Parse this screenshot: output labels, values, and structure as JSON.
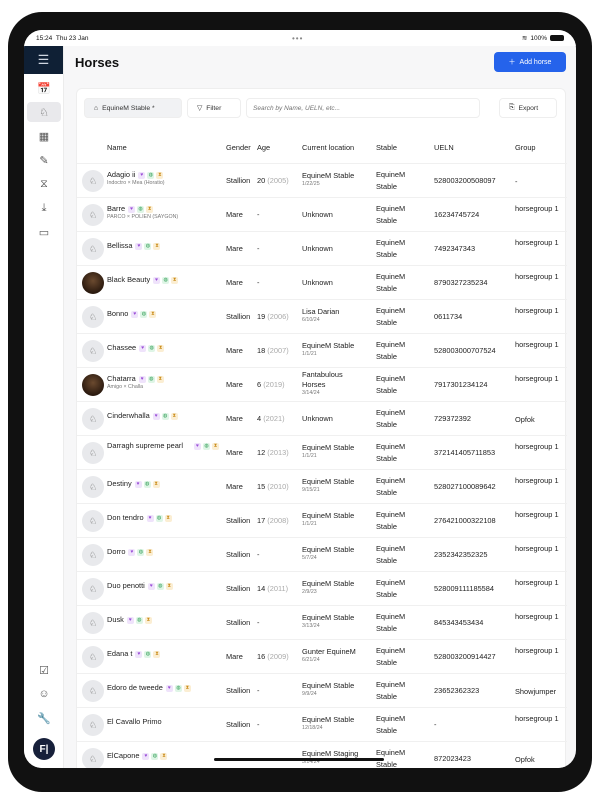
{
  "status": {
    "time": "15:24",
    "date": "Thu 23 Jan",
    "battery": "100%"
  },
  "sidebar": {
    "items": [
      {
        "icon": "calendar-icon",
        "glyph": "📅"
      },
      {
        "icon": "horse-icon",
        "glyph": "♘",
        "active": true
      },
      {
        "icon": "grid-icon",
        "glyph": "▦"
      },
      {
        "icon": "syringe-icon",
        "glyph": "✎"
      },
      {
        "icon": "dna-icon",
        "glyph": "⧖"
      },
      {
        "icon": "download-tray-icon",
        "glyph": "⤓"
      },
      {
        "icon": "wallet-icon",
        "glyph": "▭"
      }
    ],
    "bottom": [
      {
        "icon": "calendar-check-icon",
        "glyph": "☑"
      },
      {
        "icon": "contacts-icon",
        "glyph": "☺"
      },
      {
        "icon": "wrench-icon",
        "glyph": "🔧"
      }
    ],
    "user_initials": "F|"
  },
  "header": {
    "title": "Horses",
    "add_label": "Add horse"
  },
  "toolbar": {
    "stable_label": "EquineM Stable *",
    "filter_label": "Filter",
    "search_placeholder": "Search by Name, UELN, etc...",
    "export_label": "Export"
  },
  "columns": [
    "Name",
    "Gender",
    "Age",
    "Current location",
    "Stable",
    "UELN",
    "Group"
  ],
  "colors": {
    "accent": "#2563eb",
    "sidebar_header": "#0f2035"
  },
  "rows": [
    {
      "name": "Adagio ii",
      "pedigree": "Indoctro × Mea (Horatio)",
      "gender": "Stallion",
      "age": "20",
      "year": "(2005)",
      "location": "EquineM Stable",
      "date": "1/22/25",
      "stable": "EquineM Stable",
      "ueln": "528003200508097",
      "group": "-"
    },
    {
      "name": "Barre",
      "pedigree": "PARCO × POLIEN (SAYGON)",
      "gender": "Mare",
      "age": "-",
      "location": "Unknown",
      "stable": "EquineM Stable",
      "ueln": "16234745724",
      "group": "horsegroup 1"
    },
    {
      "name": "Bellissa",
      "gender": "Mare",
      "age": "-",
      "location": "Unknown",
      "stable": "EquineM Stable",
      "ueln": "7492347343",
      "group": "horsegroup 1"
    },
    {
      "name": "Black Beauty",
      "photo": true,
      "gender": "Mare",
      "age": "-",
      "location": "Unknown",
      "stable": "EquineM Stable",
      "ueln": "8790327235234",
      "group": "horsegroup 1"
    },
    {
      "name": "Bonno",
      "gender": "Stallion",
      "age": "19",
      "year": "(2006)",
      "location": "Lisa Darian",
      "date": "6/10/24",
      "stable": "EquineM Stable",
      "ueln": "0611734",
      "group": "horsegroup 1"
    },
    {
      "name": "Chassee",
      "gender": "Mare",
      "age": "18",
      "year": "(2007)",
      "location": "EquineM Stable",
      "date": "1/1/21",
      "stable": "EquineM Stable",
      "ueln": "528003000707524",
      "group": "horsegroup 1"
    },
    {
      "name": "Chatarra",
      "photo": true,
      "pedigree": "Amigo × Challa",
      "gender": "Mare",
      "age": "6",
      "year": "(2019)",
      "location": "Fantabulous Horses",
      "date": "3/14/24",
      "stable": "EquineM Stable",
      "ueln": "7917301234124",
      "group": "horsegroup 1"
    },
    {
      "name": "Cinderwhalla",
      "gender": "Mare",
      "age": "4",
      "year": "(2021)",
      "location": "Unknown",
      "stable": "EquineM Stable",
      "ueln": "729372392",
      "group": "Opfok"
    },
    {
      "name": "Darragh supreme pearl",
      "gender": "Mare",
      "age": "12",
      "year": "(2013)",
      "location": "EquineM Stable",
      "date": "1/1/21",
      "stable": "EquineM Stable",
      "ueln": "372141405711853",
      "group": "horsegroup 1"
    },
    {
      "name": "Destiny",
      "gender": "Mare",
      "age": "15",
      "year": "(2010)",
      "location": "EquineM Stable",
      "date": "9/15/21",
      "stable": "EquineM Stable",
      "ueln": "528027100089642",
      "group": "horsegroup 1"
    },
    {
      "name": "Don tendro",
      "gender": "Stallion",
      "age": "17",
      "year": "(2008)",
      "location": "EquineM Stable",
      "date": "1/1/21",
      "stable": "EquineM Stable",
      "ueln": "276421000322108",
      "group": "horsegroup 1"
    },
    {
      "name": "Dorro",
      "gender": "Stallion",
      "age": "-",
      "location": "EquineM Stable",
      "date": "5/7/24",
      "stable": "EquineM Stable",
      "ueln": "2352342352325",
      "group": "horsegroup 1"
    },
    {
      "name": "Duo penotti",
      "gender": "Stallion",
      "age": "14",
      "year": "(2011)",
      "location": "EquineM Stable",
      "date": "2/9/23",
      "stable": "EquineM Stable",
      "ueln": "528009111185584",
      "group": "horsegroup 1"
    },
    {
      "name": "Dusk",
      "gender": "Stallion",
      "age": "-",
      "location": "EquineM Stable",
      "date": "3/13/24",
      "stable": "EquineM Stable",
      "ueln": "845343453434",
      "group": "horsegroup 1"
    },
    {
      "name": "Edana t",
      "gender": "Mare",
      "age": "16",
      "year": "(2009)",
      "location": "Gunter EquineM",
      "date": "6/21/24",
      "stable": "EquineM Stable",
      "ueln": "528003200914427",
      "group": "horsegroup 1"
    },
    {
      "name": "Edoro de tweede",
      "gender": "Stallion",
      "age": "-",
      "location": "EquineM Stable",
      "date": "9/9/24",
      "stable": "EquineM Stable",
      "ueln": "23652362323",
      "group": "Showjumper"
    },
    {
      "name": "El Cavallo Primo",
      "nobadges": true,
      "gender": "Stallion",
      "age": "-",
      "location": "EquineM Stable",
      "date": "12/18/24",
      "stable": "EquineM Stable",
      "ueln": "-",
      "group": "horsegroup 1"
    },
    {
      "name": "ElCapone",
      "gender": "",
      "age": "",
      "location": "EquineM Staging",
      "date": "3/14/24",
      "stable": "EquineM Stable",
      "ueln": "872023423",
      "group": "Opfok"
    }
  ]
}
